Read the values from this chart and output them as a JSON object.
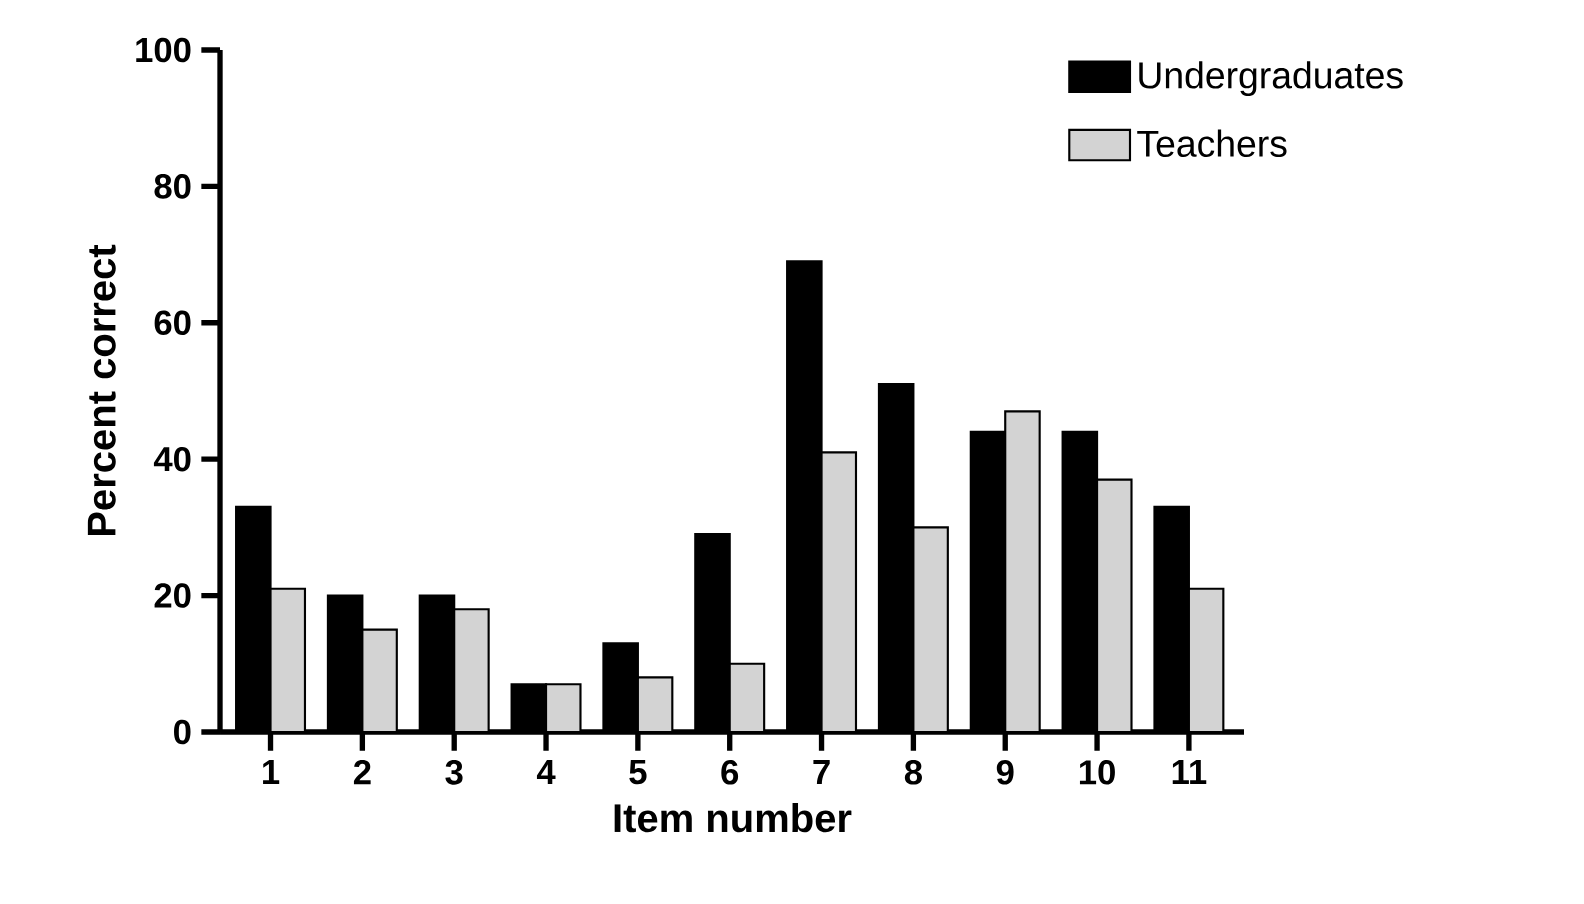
{
  "chart_data": {
    "type": "bar",
    "xlabel": "Item number",
    "ylabel": "Percent correct",
    "categories": [
      "1",
      "2",
      "3",
      "4",
      "5",
      "6",
      "7",
      "8",
      "9",
      "10",
      "11"
    ],
    "series": [
      {
        "name": "Undergraduates",
        "color": "#000000",
        "values": [
          33,
          20,
          20,
          7,
          13,
          29,
          69,
          51,
          44,
          44,
          33
        ]
      },
      {
        "name": "Teachers",
        "color": "#d3d3d3",
        "values": [
          21,
          15,
          18,
          7,
          8,
          10,
          41,
          30,
          47,
          37,
          21
        ]
      }
    ],
    "ylim": [
      0,
      100
    ],
    "yticks": [
      0,
      20,
      40,
      60,
      80,
      100
    ],
    "legend": "top right"
  }
}
